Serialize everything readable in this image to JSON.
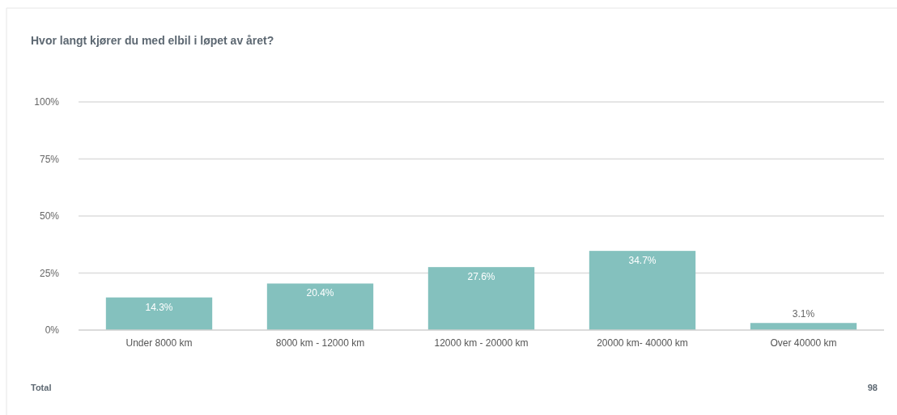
{
  "chart_data": {
    "type": "bar",
    "title": "Hvor langt kjører du med elbil i løpet av året?",
    "categories": [
      "Under 8000 km",
      "8000 km - 12000 km",
      "12000 km - 20000 km",
      "20000 km- 40000 km",
      "Over 40000 km"
    ],
    "values": [
      14.3,
      20.4,
      27.6,
      34.7,
      3.1
    ],
    "value_labels": [
      "14.3%",
      "20.4%",
      "27.6%",
      "34.7%",
      "3.1%"
    ],
    "color": "#84c1be",
    "ylim": [
      0,
      100
    ],
    "yticks": [
      {
        "value": 0,
        "label": "0%"
      },
      {
        "value": 25,
        "label": "25%"
      },
      {
        "value": 50,
        "label": "50%"
      },
      {
        "value": 75,
        "label": "75%"
      },
      {
        "value": 100,
        "label": "100%"
      }
    ],
    "grid": "y",
    "annotations": [
      "Total",
      "98"
    ]
  }
}
